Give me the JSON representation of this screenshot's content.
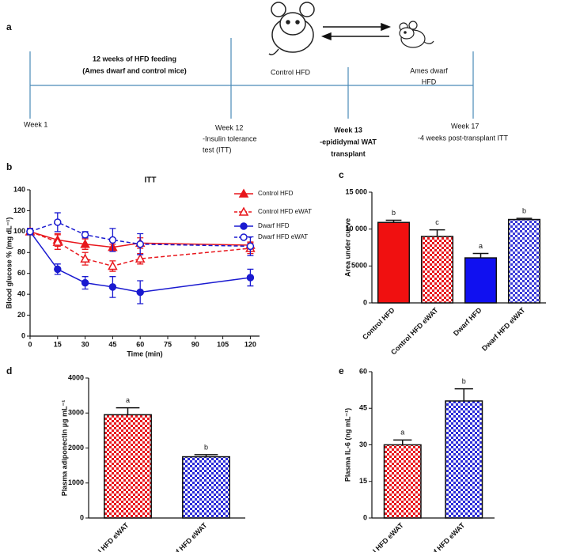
{
  "timeline": {
    "panel": "a",
    "phase": [
      "12 weeks of HFD feeding",
      "(Ames dwarf and control mice)"
    ],
    "donor": "Control HFD",
    "recipient": [
      "Ames dwarf",
      "HFD"
    ],
    "weeks": [
      {
        "label": "Week 1",
        "note": []
      },
      {
        "label": "Week 12",
        "note": [
          "-Insulin tolerance",
          "test (ITT)"
        ]
      },
      {
        "label": "Week 13",
        "note": [
          "-epididymal  WAT",
          "transplant"
        ]
      },
      {
        "label": "Week 17",
        "note": [
          "-4 weeks post-transplant  ITT"
        ]
      }
    ]
  },
  "chart_data": [
    {
      "type": "line",
      "panel": "b",
      "title": "ITT",
      "xlabel": "Time (min)",
      "ylabel": "Blood glucose % (mg dL⁻¹)",
      "x": [
        0,
        15,
        30,
        45,
        60,
        120
      ],
      "xlim": [
        0,
        125
      ],
      "xticks": [
        0,
        15,
        30,
        45,
        60,
        75,
        90,
        105,
        120
      ],
      "ylim": [
        0,
        140
      ],
      "yticks": [
        0,
        20,
        40,
        60,
        80,
        100,
        120,
        140
      ],
      "series": [
        {
          "name": "Control HFD",
          "color": "#e8161c",
          "marker": "triangle",
          "filled": true,
          "dashed": false,
          "values": [
            100,
            92,
            88,
            85,
            89,
            87
          ],
          "errors": [
            3,
            6,
            5,
            3,
            5,
            3
          ]
        },
        {
          "name": "Control HFD eWAT",
          "color": "#e8161c",
          "marker": "triangle",
          "filled": false,
          "dashed": true,
          "values": [
            100,
            90,
            74,
            67,
            74,
            84
          ],
          "errors": [
            3,
            7,
            6,
            5,
            5,
            5
          ]
        },
        {
          "name": "Dwarf HFD",
          "color": "#1a1ad0",
          "marker": "circle",
          "filled": true,
          "dashed": false,
          "values": [
            100,
            64,
            51,
            47,
            42,
            56
          ],
          "errors": [
            3,
            5,
            6,
            10,
            11,
            8
          ]
        },
        {
          "name": "Dwarf HFD eWAT",
          "color": "#1a1ad0",
          "marker": "circle",
          "filled": false,
          "dashed": true,
          "values": [
            100,
            109,
            97,
            92,
            88,
            86
          ],
          "errors": [
            3,
            9,
            3,
            11,
            10,
            9
          ]
        }
      ]
    },
    {
      "type": "bar",
      "panel": "c",
      "ylabel": "Area under curve",
      "categories": [
        "Control HFD",
        "Control HFD eWAT",
        "Dwarf HFD",
        "Dwarf HFD eWAT"
      ],
      "values": [
        10900,
        9000,
        6100,
        11300
      ],
      "errors": [
        300,
        900,
        600,
        150
      ],
      "letters": [
        "b",
        "c",
        "a",
        "b"
      ],
      "colors": [
        "#f01010",
        "#e8161c",
        "#1010f0",
        "#3a3ad8"
      ],
      "patterns": [
        "solid",
        "checker",
        "solid",
        "checker"
      ],
      "ylim": [
        0,
        15000
      ],
      "yticks": [
        0,
        5000,
        {
          "value": 10000,
          "label": "10 000"
        },
        {
          "value": 15000,
          "label": "15 000"
        }
      ]
    },
    {
      "type": "bar",
      "panel": "d",
      "ylabel": "Plasma adiponectin µg mL⁻¹",
      "categories": [
        "Control HFD eWAT",
        "Dwarf HFD eWAT"
      ],
      "values": [
        2950,
        1750
      ],
      "errors": [
        200,
        60
      ],
      "letters": [
        "a",
        "b"
      ],
      "colors": [
        "#e8161c",
        "#2a2ad8"
      ],
      "patterns": [
        "checker",
        "checker"
      ],
      "ylim": [
        0,
        4000
      ],
      "yticks": [
        0,
        1000,
        2000,
        3000,
        4000
      ]
    },
    {
      "type": "bar",
      "panel": "e",
      "ylabel": "Plasma IL-6 (ng mL⁻¹)",
      "categories": [
        "Control HFD eWAT",
        "Dwarf HFD eWAT"
      ],
      "values": [
        30,
        48
      ],
      "errors": [
        2,
        5
      ],
      "letters": [
        "a",
        "b"
      ],
      "colors": [
        "#e8161c",
        "#2a2ad8"
      ],
      "patterns": [
        "checker",
        "checker"
      ],
      "ylim": [
        0,
        60
      ],
      "yticks": [
        0,
        15,
        30,
        45,
        60
      ]
    }
  ]
}
